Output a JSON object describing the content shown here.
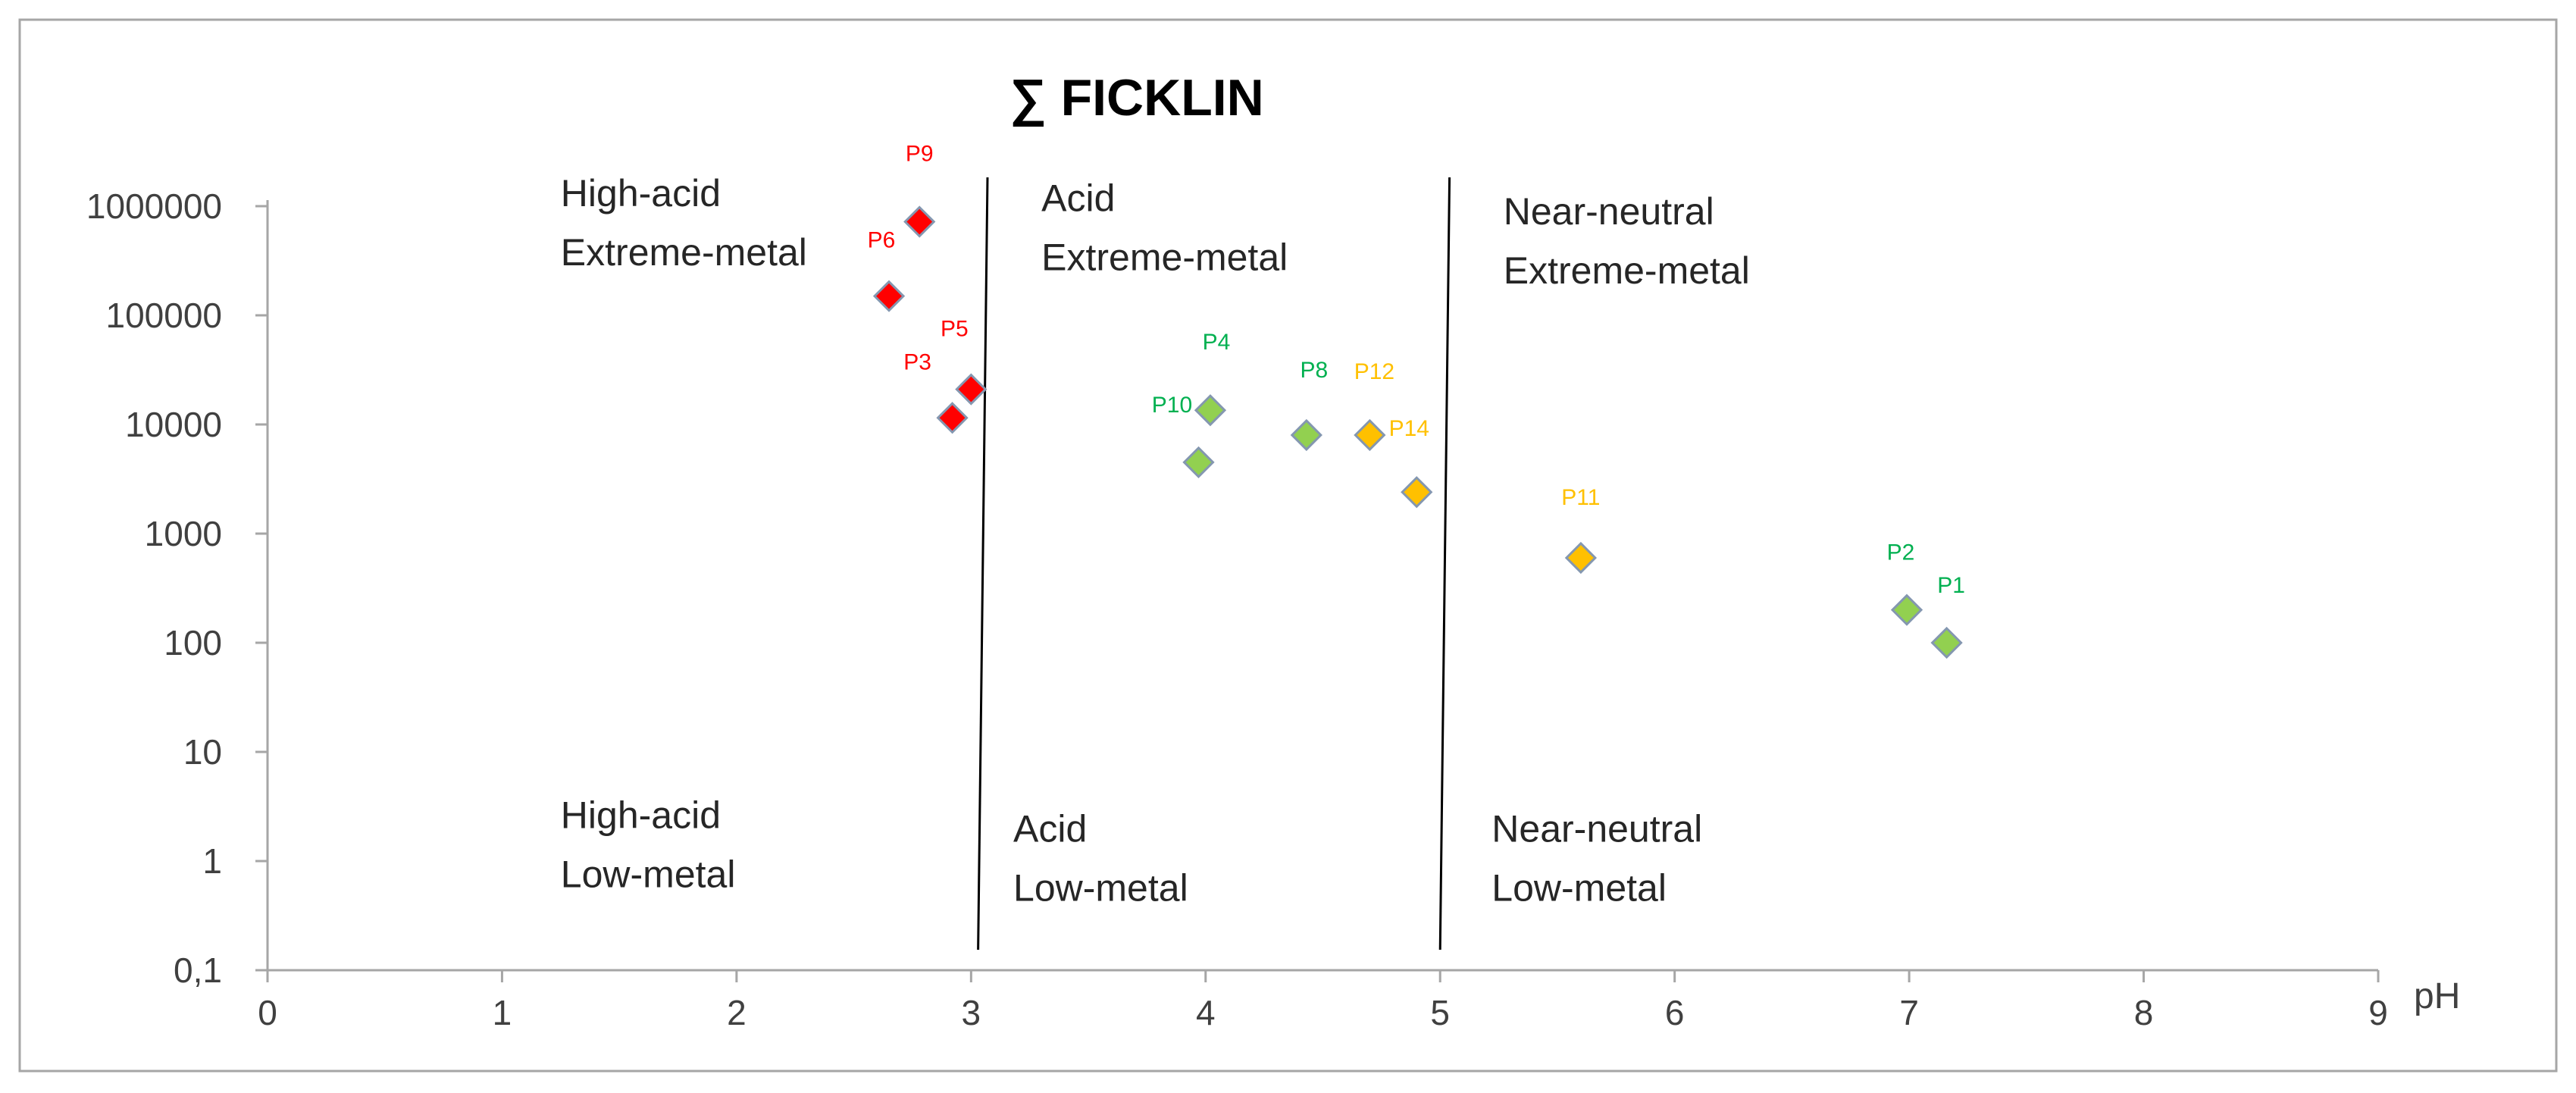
{
  "chart_data": {
    "type": "scatter",
    "title": "∑ FICKLIN",
    "xlabel": "pH",
    "ylabel": "",
    "xlim": [
      0,
      9
    ],
    "ylim": [
      0.1,
      1000000
    ],
    "yscale": "log",
    "grid": false,
    "legend": "none",
    "x_ticks": [
      {
        "value": 0,
        "label": "0"
      },
      {
        "value": 1,
        "label": "1"
      },
      {
        "value": 2,
        "label": "2"
      },
      {
        "value": 3,
        "label": "3"
      },
      {
        "value": 4,
        "label": "4"
      },
      {
        "value": 5,
        "label": "5"
      },
      {
        "value": 6,
        "label": "6"
      },
      {
        "value": 7,
        "label": "7"
      },
      {
        "value": 8,
        "label": "8"
      },
      {
        "value": 9,
        "label": "9"
      }
    ],
    "y_ticks": [
      {
        "value": 0.1,
        "label": "0,1"
      },
      {
        "value": 1,
        "label": "1"
      },
      {
        "value": 10,
        "label": "10"
      },
      {
        "value": 100,
        "label": "100"
      },
      {
        "value": 1000,
        "label": "1000"
      },
      {
        "value": 10000,
        "label": "10000"
      },
      {
        "value": 100000,
        "label": "100000"
      },
      {
        "value": 1000000,
        "label": "1000000"
      }
    ],
    "colors": {
      "red": "#ff0000",
      "green": "#92d050",
      "orange": "#ffc000",
      "marker_edge": "#8497b0",
      "green_label": "#00b050",
      "orange_label": "#ffc000",
      "red_label": "#ff0000"
    },
    "points": [
      {
        "label": "P9",
        "x": 2.78,
        "y": 720000,
        "color": "red"
      },
      {
        "label": "P6",
        "x": 2.65,
        "y": 150000,
        "color": "red"
      },
      {
        "label": "P5",
        "x": 3.0,
        "y": 21000,
        "color": "red"
      },
      {
        "label": "P3",
        "x": 2.92,
        "y": 11500,
        "color": "red"
      },
      {
        "label": "P4",
        "x": 4.02,
        "y": 13500,
        "color": "green"
      },
      {
        "label": "P10",
        "x": 3.97,
        "y": 4500,
        "color": "green"
      },
      {
        "label": "P8",
        "x": 4.43,
        "y": 8000,
        "color": "green"
      },
      {
        "label": "P12",
        "x": 4.7,
        "y": 8000,
        "color": "orange"
      },
      {
        "label": "P14",
        "x": 4.9,
        "y": 2400,
        "color": "orange"
      },
      {
        "label": "P11",
        "x": 5.6,
        "y": 600,
        "color": "orange"
      },
      {
        "label": "P2",
        "x": 6.99,
        "y": 200,
        "color": "green"
      },
      {
        "label": "P1",
        "x": 7.16,
        "y": 100,
        "color": "green"
      }
    ],
    "dividers": [
      {
        "x_top": 3.07,
        "x_bottom": 3.03
      },
      {
        "x_top": 5.04,
        "x_bottom": 5.0
      }
    ],
    "region_labels": [
      {
        "line1": "High-acid",
        "line2": "Extreme-metal",
        "x": 1.25,
        "y": 1000000
      },
      {
        "line1": "Acid",
        "line2": "Extreme-metal",
        "x": 3.3,
        "y": 900000
      },
      {
        "line1": "Near-neutral",
        "line2": "Extreme-metal",
        "x": 5.27,
        "y": 680000
      },
      {
        "line1": "High-acid",
        "line2": "Low-metal",
        "x": 1.25,
        "y": 2.0
      },
      {
        "line1": "Acid",
        "line2": "Low-metal",
        "x": 3.18,
        "y": 1.5
      },
      {
        "line1": "Near-neutral",
        "line2": "Low-metal",
        "x": 5.22,
        "y": 1.5
      }
    ]
  }
}
